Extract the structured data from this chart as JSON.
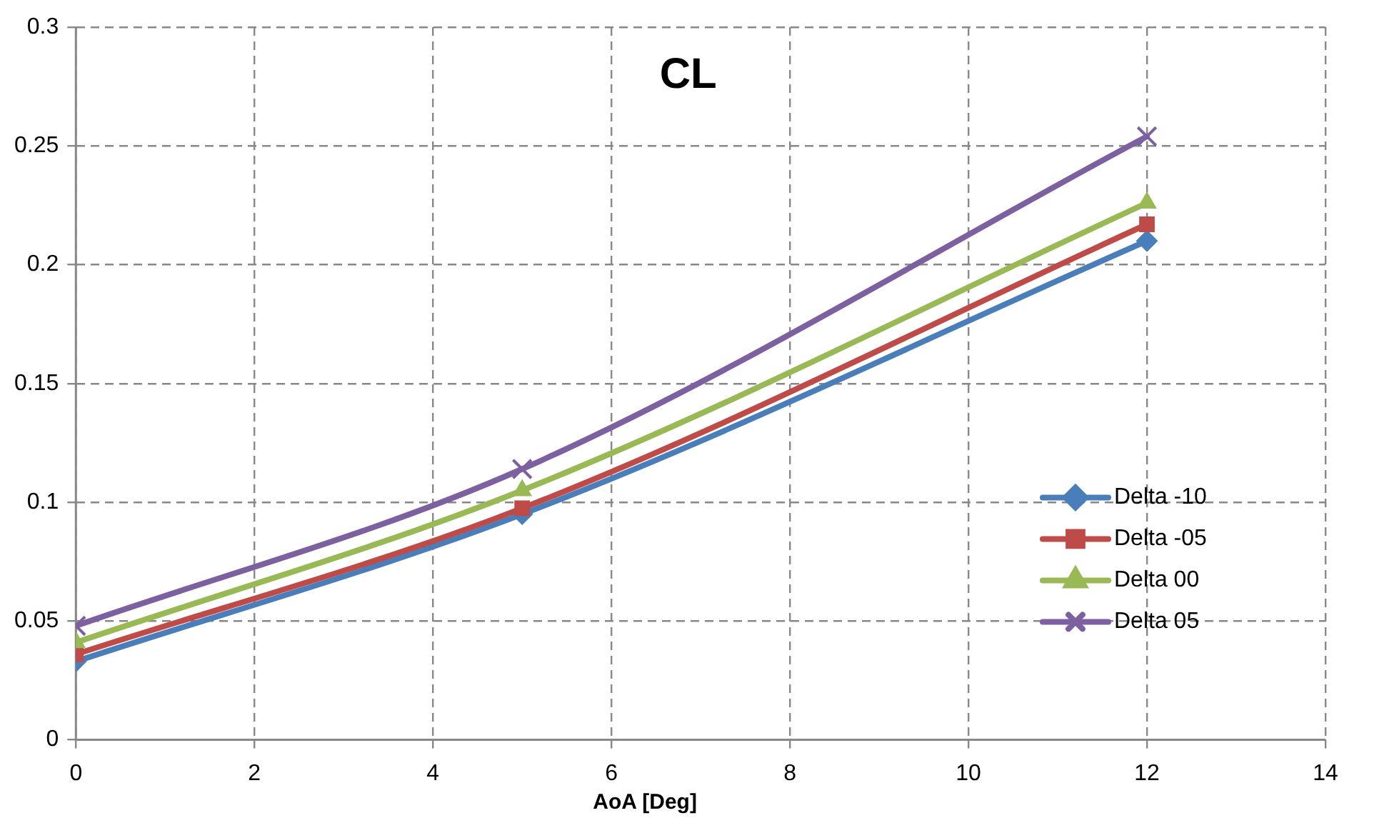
{
  "chart_data": {
    "type": "line",
    "title": "CL",
    "xlabel": "AoA [Deg]",
    "x": [
      0,
      5,
      12
    ],
    "series": [
      {
        "name": "Delta -10",
        "color": "#4a7ebb",
        "marker": "diamond",
        "values": [
          0.033,
          0.095,
          0.21
        ]
      },
      {
        "name": "Delta -05",
        "color": "#be4b48",
        "marker": "square",
        "values": [
          0.036,
          0.0975,
          0.217
        ]
      },
      {
        "name": "Delta 00",
        "color": "#98b954",
        "marker": "triangle",
        "values": [
          0.041,
          0.105,
          0.226
        ]
      },
      {
        "name": "Delta 05",
        "color": "#7d60a0",
        "marker": "cross",
        "values": [
          0.048,
          0.114,
          0.254
        ]
      }
    ],
    "xlim": [
      0,
      14
    ],
    "xticks": [
      0,
      2,
      4,
      6,
      8,
      10,
      12,
      14
    ],
    "ylim": [
      0,
      0.3
    ],
    "yticks": [
      0,
      0.05,
      0.1,
      0.15,
      0.2,
      0.25,
      0.3
    ],
    "grid": true,
    "legend": "right"
  }
}
